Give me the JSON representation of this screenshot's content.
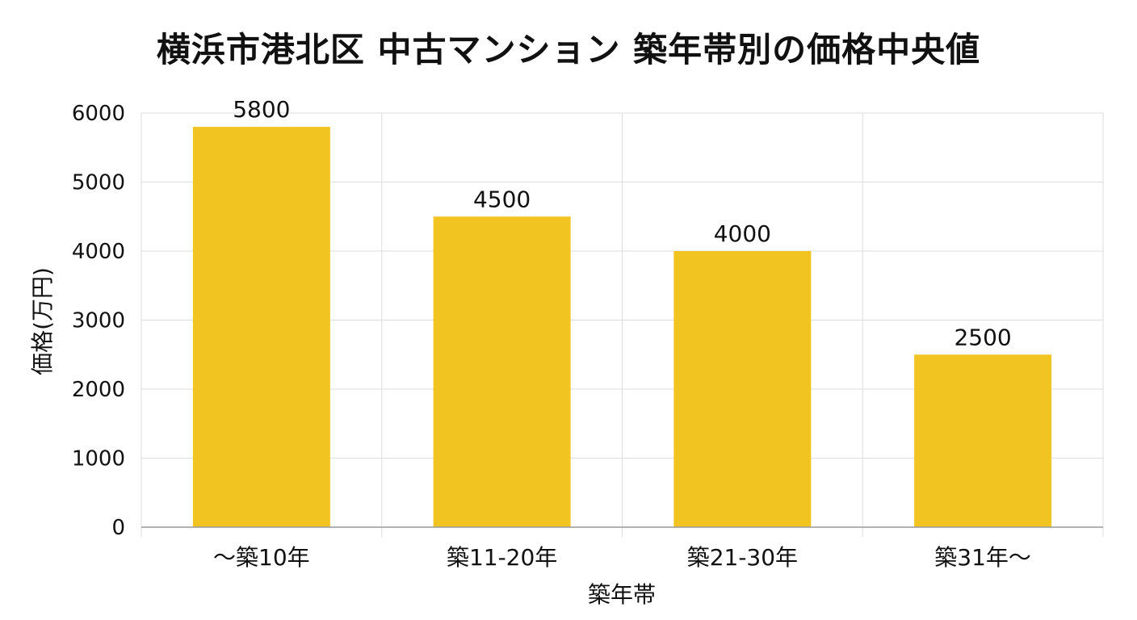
{
  "chart_data": {
    "type": "bar",
    "title": "横浜市港北区 中古マンション 築年帯別の価格中央値",
    "xlabel": "築年帯",
    "ylabel": "価格(万円)",
    "categories": [
      "～築10年",
      "築11-20年",
      "築21-30年",
      "築31年～"
    ],
    "values": [
      5800,
      4500,
      4000,
      2500
    ],
    "data_labels": [
      "5800",
      "4500",
      "4000",
      "2500"
    ],
    "ylim": [
      0,
      6000
    ],
    "yticks": [
      0,
      1000,
      2000,
      3000,
      4000,
      5000,
      6000
    ],
    "ytick_labels": [
      "0",
      "1000",
      "2000",
      "3000",
      "4000",
      "5000",
      "6000"
    ],
    "grid": true,
    "bar_color": "#F2C422",
    "grid_color": "#DDDDDD",
    "axis_color": "#999999"
  }
}
